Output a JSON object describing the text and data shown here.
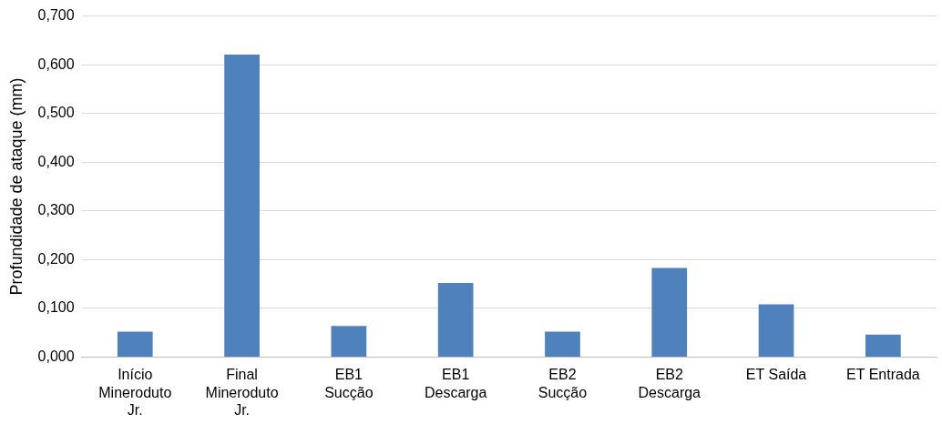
{
  "chart_data": {
    "type": "bar",
    "ylabel": "Profundidade de ataque (mm)",
    "categories": [
      "Início Mineroduto Jr.",
      "Final Mineroduto Jr.",
      "EB1 Sucção",
      "EB1 Descarga",
      "EB2 Sucção",
      "EB2 Descarga",
      "ET Saída",
      "ET Entrada"
    ],
    "values": [
      0.052,
      0.621,
      0.064,
      0.152,
      0.052,
      0.183,
      0.108,
      0.046
    ],
    "color": "#4f81bd",
    "ylim": [
      0,
      0.7
    ],
    "yticks": [
      {
        "value": 0,
        "label": "0,000"
      },
      {
        "value": 0.1,
        "label": "0,100"
      },
      {
        "value": 0.2,
        "label": "0,200"
      },
      {
        "value": 0.3,
        "label": "0,300"
      },
      {
        "value": 0.4,
        "label": "0,400"
      },
      {
        "value": 0.5,
        "label": "0,500"
      },
      {
        "value": 0.6,
        "label": "0,600"
      },
      {
        "value": 0.7,
        "label": "0,700"
      }
    ],
    "grid": "y"
  }
}
